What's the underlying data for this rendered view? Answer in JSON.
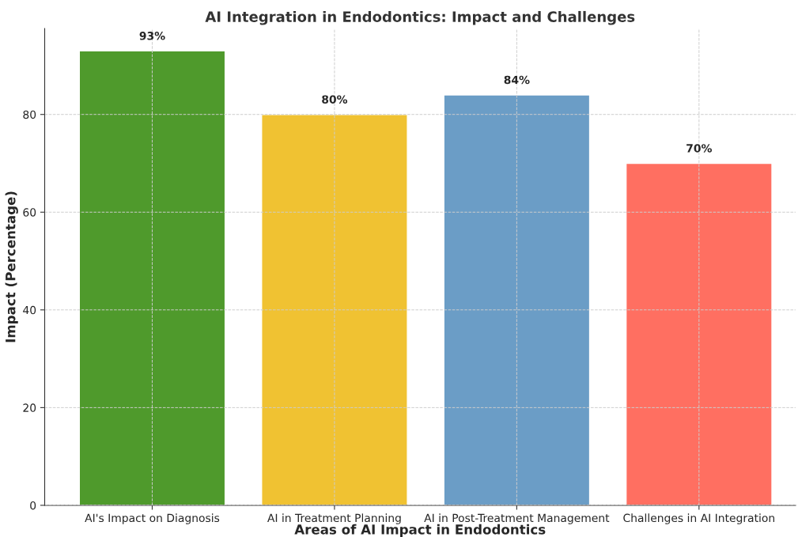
{
  "chart_data": {
    "type": "bar",
    "title": "AI Integration in Endodontics: Impact and Challenges",
    "xlabel": "Areas of AI Impact in Endodontics",
    "ylabel": "Impact (Percentage)",
    "categories": [
      "AI's Impact on Diagnosis",
      "AI in Treatment Planning",
      "AI in Post-Treatment Management",
      "Challenges in AI Integration"
    ],
    "values": [
      93,
      80,
      84,
      70
    ],
    "colors": [
      "#4f9a2c",
      "#f0c232",
      "#6b9dc6",
      "#ff6f61"
    ],
    "value_labels": [
      "93%",
      "80%",
      "84%",
      "70%"
    ],
    "ylim": [
      0,
      97.6
    ],
    "yticks": [
      0,
      20,
      40,
      60,
      80
    ],
    "grid": true
  }
}
